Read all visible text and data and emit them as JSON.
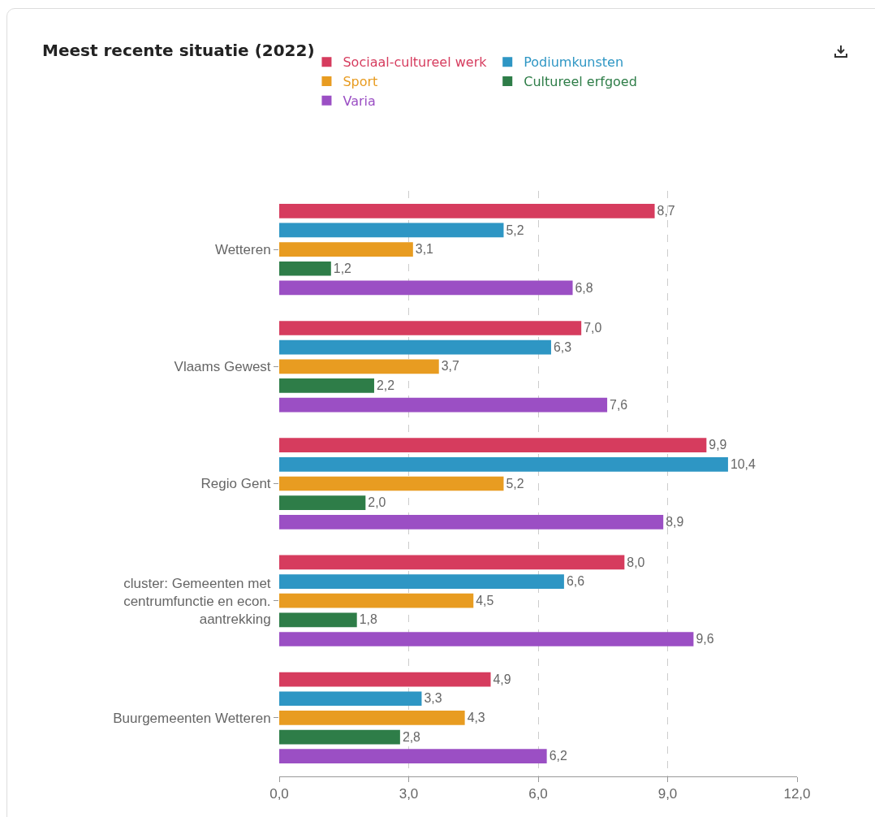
{
  "chart_data": {
    "type": "bar",
    "orientation": "horizontal",
    "title": "Meest recente situatie (2022)",
    "categories": [
      "Wetteren",
      "Vlaams Gewest",
      "Regio Gent",
      "cluster: Gemeenten met centrumfunctie en econ. aantrekking",
      "Buurgemeenten Wetteren"
    ],
    "series": [
      {
        "name": "Sociaal-cultureel werk",
        "color": "#d63c5e",
        "values": [
          8.7,
          7.0,
          9.9,
          8.0,
          4.9
        ],
        "value_labels": [
          "8,7",
          "7,0",
          "9,9",
          "8,0",
          "4,9"
        ]
      },
      {
        "name": "Podiumkunsten",
        "color": "#2e96c4",
        "values": [
          5.2,
          6.3,
          10.4,
          6.6,
          3.3
        ],
        "value_labels": [
          "5,2",
          "6,3",
          "10,4",
          "6,6",
          "3,3"
        ]
      },
      {
        "name": "Sport",
        "color": "#e89c21",
        "values": [
          3.1,
          3.7,
          5.2,
          4.5,
          4.3
        ],
        "value_labels": [
          "3,1",
          "3,7",
          "5,2",
          "4,5",
          "4,3"
        ]
      },
      {
        "name": "Cultureel erfgoed",
        "color": "#2e7d48",
        "values": [
          1.2,
          2.2,
          2.0,
          1.8,
          2.8
        ],
        "value_labels": [
          "1,2",
          "2,2",
          "2,0",
          "1,8",
          "2,8"
        ]
      },
      {
        "name": "Varia",
        "color": "#9b4fc4",
        "values": [
          6.8,
          7.6,
          8.9,
          9.6,
          6.2
        ],
        "value_labels": [
          "6,8",
          "7,6",
          "8,9",
          "9,6",
          "6,2"
        ]
      }
    ],
    "xlim": [
      0,
      12
    ],
    "xticks": [
      {
        "value": 0,
        "label": "0,0"
      },
      {
        "value": 3,
        "label": "3,0"
      },
      {
        "value": 6,
        "label": "6,0"
      },
      {
        "value": 9,
        "label": "9,0"
      },
      {
        "value": 12,
        "label": "12,0"
      }
    ],
    "grid": "x",
    "legend": "top"
  }
}
